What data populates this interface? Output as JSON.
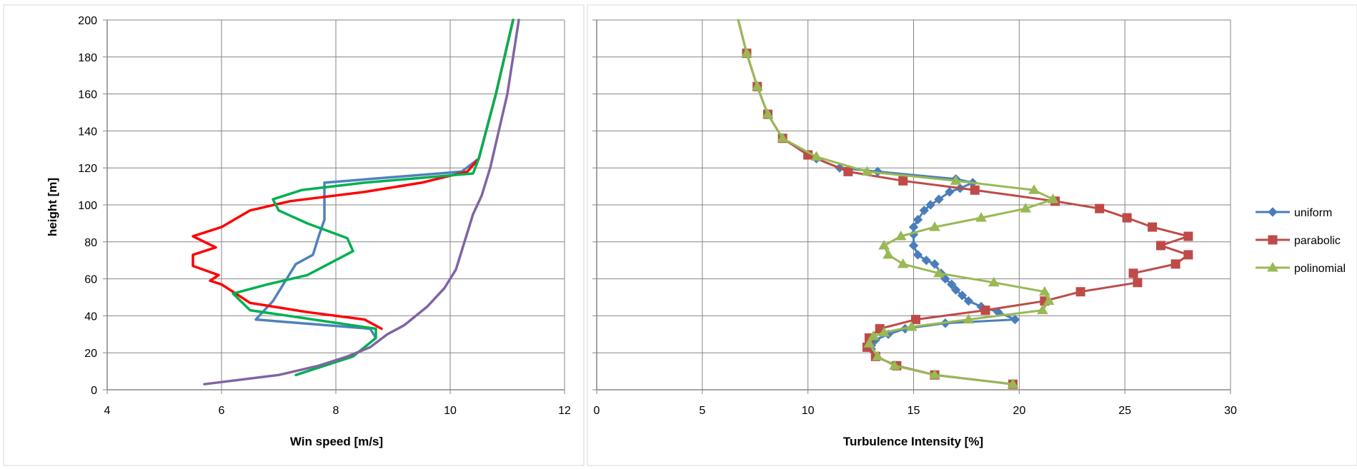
{
  "chart_data": [
    {
      "type": "line",
      "title": "",
      "xlabel": "Win speed [m/s]",
      "ylabel": "height [m]",
      "xlim": [
        4,
        12
      ],
      "ylim": [
        0,
        200
      ],
      "x_ticks": [
        4,
        6,
        8,
        10,
        12
      ],
      "y_ticks": [
        0,
        20,
        40,
        60,
        80,
        100,
        120,
        140,
        160,
        180,
        200
      ],
      "grid": true,
      "legend": "none",
      "series": [
        {
          "color": "#4f81bd",
          "points": [
            [
              8.7,
              28
            ],
            [
              8.6,
              33
            ],
            [
              6.6,
              38
            ],
            [
              6.9,
              48
            ],
            [
              7.1,
              58
            ],
            [
              7.3,
              68
            ],
            [
              7.6,
              73
            ],
            [
              7.7,
              83
            ],
            [
              7.8,
              92
            ],
            [
              7.8,
              102
            ],
            [
              7.8,
              112
            ],
            [
              10.2,
              118
            ],
            [
              10.5,
              125
            ],
            [
              10.8,
              160
            ],
            [
              11.1,
              200
            ]
          ]
        },
        {
          "color": "#ff0000",
          "points": [
            [
              8.8,
              33
            ],
            [
              8.5,
              38
            ],
            [
              7.5,
              42
            ],
            [
              6.5,
              47
            ],
            [
              6.3,
              51
            ],
            [
              6.0,
              57
            ],
            [
              5.8,
              59
            ],
            [
              5.95,
              62
            ],
            [
              5.5,
              67
            ],
            [
              5.5,
              73
            ],
            [
              5.9,
              77
            ],
            [
              5.5,
              83
            ],
            [
              6.0,
              88
            ],
            [
              6.5,
              97
            ],
            [
              7.2,
              102
            ],
            [
              8.5,
              107
            ],
            [
              9.5,
              112
            ],
            [
              10.3,
              118
            ],
            [
              10.5,
              125
            ],
            [
              10.8,
              160
            ],
            [
              11.1,
              200
            ]
          ]
        },
        {
          "color": "#00b050",
          "points": [
            [
              7.3,
              8
            ],
            [
              8.3,
              18
            ],
            [
              8.7,
              28
            ],
            [
              8.7,
              33
            ],
            [
              6.5,
              43
            ],
            [
              6.2,
              52
            ],
            [
              6.8,
              57
            ],
            [
              7.5,
              62
            ],
            [
              8.3,
              75
            ],
            [
              8.2,
              82
            ],
            [
              7.5,
              90
            ],
            [
              7.0,
              97
            ],
            [
              6.9,
              103
            ],
            [
              7.4,
              108
            ],
            [
              8.5,
              112
            ],
            [
              10.4,
              117
            ],
            [
              10.5,
              125
            ],
            [
              10.8,
              160
            ],
            [
              11.1,
              200
            ]
          ]
        },
        {
          "color": "#8064a2",
          "points": [
            [
              5.7,
              3
            ],
            [
              7.0,
              8
            ],
            [
              7.7,
              13
            ],
            [
              8.2,
              18
            ],
            [
              8.6,
              23
            ],
            [
              8.9,
              30
            ],
            [
              9.2,
              35
            ],
            [
              9.6,
              45
            ],
            [
              9.9,
              55
            ],
            [
              10.1,
              65
            ],
            [
              10.2,
              75
            ],
            [
              10.3,
              85
            ],
            [
              10.4,
              95
            ],
            [
              10.55,
              105
            ],
            [
              10.7,
              120
            ],
            [
              10.85,
              140
            ],
            [
              11.0,
              160
            ],
            [
              11.1,
              180
            ],
            [
              11.2,
              200
            ]
          ]
        }
      ]
    },
    {
      "type": "line",
      "title": "",
      "xlabel": "Turbulence Intensity [%]",
      "ylabel": "",
      "xlim": [
        0,
        30
      ],
      "ylim": [
        0,
        200
      ],
      "x_ticks": [
        0,
        5,
        10,
        15,
        20,
        25,
        30
      ],
      "y_ticks": [
        0,
        20,
        40,
        60,
        80,
        100,
        120,
        140,
        160,
        180,
        200
      ],
      "grid": true,
      "legend": "right",
      "series": [
        {
          "name": "uniform",
          "color": "#4a7ebb",
          "marker": "diamond",
          "points": [
            [
              6.7,
              200
            ],
            [
              7.1,
              182
            ],
            [
              7.6,
              164
            ],
            [
              8.1,
              149
            ],
            [
              8.8,
              136
            ],
            [
              10.0,
              127
            ],
            [
              10.4,
              125
            ],
            [
              11.5,
              120
            ],
            [
              13.3,
              118
            ],
            [
              17.0,
              114
            ],
            [
              17.8,
              112
            ],
            [
              17.2,
              109
            ],
            [
              16.7,
              107
            ],
            [
              16.2,
              103
            ],
            [
              15.8,
              100
            ],
            [
              15.5,
              97
            ],
            [
              15.2,
              92
            ],
            [
              15.0,
              88
            ],
            [
              15.0,
              84
            ],
            [
              15.0,
              78
            ],
            [
              15.2,
              73
            ],
            [
              15.6,
              70
            ],
            [
              16.0,
              68
            ],
            [
              16.3,
              63
            ],
            [
              16.5,
              60
            ],
            [
              16.8,
              57
            ],
            [
              17.0,
              54
            ],
            [
              17.3,
              51
            ],
            [
              17.6,
              48
            ],
            [
              18.2,
              45
            ],
            [
              19.0,
              42
            ],
            [
              19.8,
              38
            ],
            [
              16.5,
              36
            ],
            [
              14.6,
              33
            ],
            [
              13.8,
              30
            ],
            [
              13.2,
              27
            ],
            [
              13.0,
              24
            ],
            [
              13.0,
              22
            ],
            [
              13.2,
              18
            ],
            [
              14.2,
              13
            ],
            [
              16.0,
              8
            ],
            [
              19.7,
              3
            ]
          ]
        },
        {
          "name": "parabolic",
          "color": "#be4b48",
          "marker": "square",
          "points": [
            [
              6.7,
              200
            ],
            [
              7.1,
              182
            ],
            [
              7.6,
              164
            ],
            [
              8.1,
              149
            ],
            [
              8.8,
              136
            ],
            [
              10.0,
              127
            ],
            [
              11.9,
              118
            ],
            [
              14.5,
              113
            ],
            [
              17.9,
              108
            ],
            [
              21.7,
              102
            ],
            [
              23.8,
              98
            ],
            [
              25.1,
              93
            ],
            [
              26.3,
              88
            ],
            [
              28.0,
              83
            ],
            [
              26.7,
              78
            ],
            [
              28.0,
              73
            ],
            [
              27.4,
              68
            ],
            [
              25.4,
              63
            ],
            [
              25.6,
              58
            ],
            [
              22.9,
              53
            ],
            [
              21.2,
              48
            ],
            [
              18.4,
              43
            ],
            [
              15.1,
              38
            ],
            [
              13.4,
              33
            ],
            [
              12.9,
              28
            ],
            [
              12.8,
              23
            ],
            [
              13.2,
              18
            ],
            [
              14.2,
              13
            ],
            [
              16.0,
              8
            ],
            [
              19.7,
              3
            ]
          ]
        },
        {
          "name": "polinomial",
          "color": "#98b954",
          "marker": "triangle",
          "points": [
            [
              6.7,
              200
            ],
            [
              7.1,
              182
            ],
            [
              7.6,
              164
            ],
            [
              8.1,
              149
            ],
            [
              8.8,
              136
            ],
            [
              10.4,
              126
            ],
            [
              12.8,
              118
            ],
            [
              17.0,
              113
            ],
            [
              20.7,
              108
            ],
            [
              21.6,
              103
            ],
            [
              20.3,
              98
            ],
            [
              18.2,
              93
            ],
            [
              16.0,
              88
            ],
            [
              14.4,
              83
            ],
            [
              13.6,
              78
            ],
            [
              13.8,
              73
            ],
            [
              14.5,
              68
            ],
            [
              16.2,
              63
            ],
            [
              18.8,
              58
            ],
            [
              21.2,
              53
            ],
            [
              21.4,
              48
            ],
            [
              21.1,
              43
            ],
            [
              17.6,
              38
            ],
            [
              14.9,
              34
            ],
            [
              13.6,
              31
            ],
            [
              13.1,
              29
            ],
            [
              12.9,
              25
            ],
            [
              13.3,
              18
            ],
            [
              14.1,
              13
            ],
            [
              16.0,
              8
            ],
            [
              19.7,
              3
            ]
          ]
        }
      ]
    }
  ]
}
